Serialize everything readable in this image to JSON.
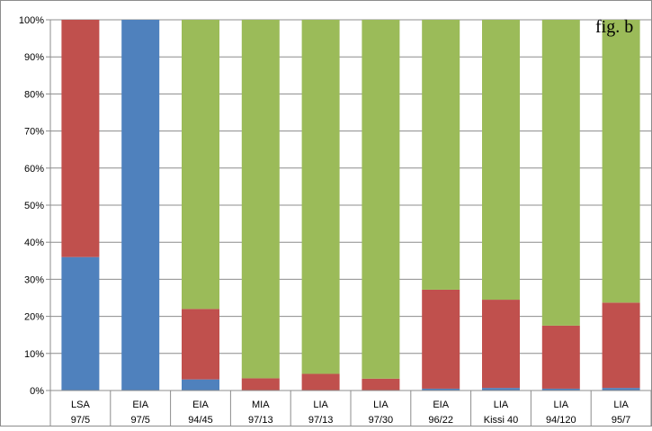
{
  "figure_label": "fig. b",
  "chart_data": {
    "type": "bar",
    "stacked": true,
    "percent_stacked": true,
    "categories": [
      {
        "line1": "LSA",
        "line2": "97/5"
      },
      {
        "line1": "EIA",
        "line2": "97/5"
      },
      {
        "line1": "EIA",
        "line2": "94/45"
      },
      {
        "line1": "MIA",
        "line2": "97/13"
      },
      {
        "line1": "LIA",
        "line2": "97/13"
      },
      {
        "line1": "LIA",
        "line2": "97/30"
      },
      {
        "line1": "EIA",
        "line2": "96/22"
      },
      {
        "line1": "LIA",
        "line2": "Kissi 40"
      },
      {
        "line1": "LIA",
        "line2": "94/120"
      },
      {
        "line1": "LIA",
        "line2": "95/7"
      }
    ],
    "series": [
      {
        "color": "#4F81BD",
        "values": [
          36,
          100,
          3,
          0,
          0,
          0,
          0.5,
          0.7,
          0.5,
          0.7
        ]
      },
      {
        "color": "#C0504D",
        "values": [
          64,
          0,
          19,
          3.3,
          4.5,
          3.2,
          26.7,
          23.8,
          17,
          23
        ]
      },
      {
        "color": "#9BBB59",
        "values": [
          0,
          0,
          78,
          96.7,
          95.5,
          96.8,
          72.8,
          75.5,
          82.5,
          76.3
        ]
      }
    ],
    "y_ticks": [
      "0%",
      "10%",
      "20%",
      "30%",
      "40%",
      "50%",
      "60%",
      "70%",
      "80%",
      "90%",
      "100%"
    ],
    "ylim": [
      0,
      100
    ],
    "grid": true,
    "legend": "none"
  }
}
